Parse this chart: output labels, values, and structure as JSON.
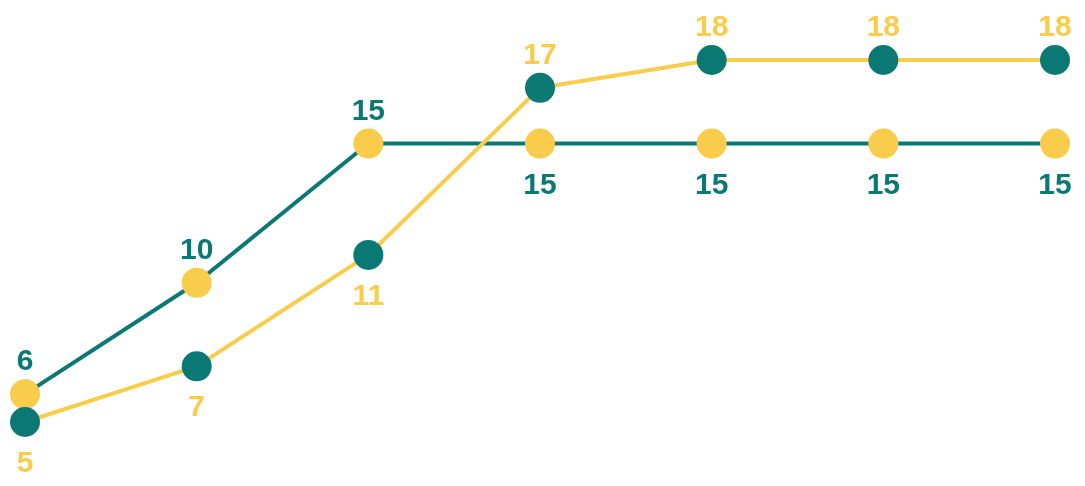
{
  "chart_data": {
    "type": "line",
    "categories": [
      null,
      null,
      null,
      null,
      null,
      null,
      null
    ],
    "data_labels": true,
    "marker": "circle",
    "series": [
      {
        "color": "#0a7873",
        "values": [
          6,
          10,
          15,
          15,
          15,
          15,
          15
        ]
      },
      {
        "color": "#f9cc4b",
        "values": [
          5,
          7,
          11,
          17,
          18,
          18,
          18
        ]
      }
    ]
  }
}
